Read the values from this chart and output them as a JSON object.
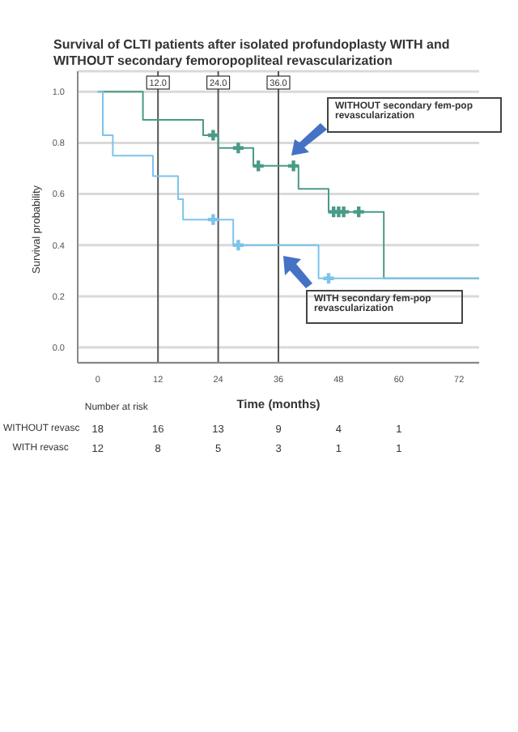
{
  "chart_data": {
    "type": "step",
    "title": "Survival of CLTI patients after isolated profundoplasty WITH and WITHOUT secondary femoropopliteal revascularization",
    "xlabel": "Time (months)",
    "ylabel": "Survival probability",
    "series": [
      {
        "type": "step",
        "color": "#4a9a88",
        "x": [
          0,
          9,
          21,
          24,
          31,
          40,
          46,
          57,
          76
        ],
        "values": [
          1,
          0.89,
          0.83,
          0.78,
          0.71,
          0.62,
          0.53,
          0.27,
          0.27
        ]
      },
      {
        "color": "#7cc3ec",
        "x": [
          0,
          1,
          3,
          11,
          16,
          17,
          27,
          44,
          76
        ],
        "values": [
          1,
          0.83,
          0.75,
          0.67,
          0.58,
          0.5,
          0.4,
          0.27,
          0.27
        ]
      },
      {
        "type": "scatter",
        "marker": "cross",
        "color": "#4a9a88",
        "x": [
          23,
          28,
          32,
          39,
          47,
          48,
          49,
          52
        ],
        "values": [
          0.83,
          0.78,
          0.71,
          0.71,
          0.53,
          0.53,
          0.53,
          0.53
        ]
      },
      {
        "type": "scatter",
        "marker": "cross",
        "color": "#7cc3ec",
        "x": [
          23,
          28,
          46
        ],
        "values": [
          0.5,
          0.4,
          0.27
        ]
      }
    ],
    "xlim": [
      -4,
      76
    ],
    "xticks": [
      0,
      12,
      24,
      36,
      48,
      60,
      72
    ],
    "ylim": [
      -0.06,
      1.08
    ],
    "yticks": [
      {
        "value": 0,
        "label": "0.0"
      },
      {
        "value": 0.2,
        "label": "0.2"
      },
      {
        "value": 0.4,
        "label": "0.4"
      },
      {
        "value": 0.6,
        "label": "0.6"
      },
      {
        "value": 0.8,
        "label": "0.8"
      },
      {
        "value": 1,
        "label": "1.0"
      }
    ],
    "grid": "y",
    "ref_lines": [
      {
        "axis": "x",
        "value": 12,
        "label": "12.0",
        "color": "#555555"
      },
      {
        "axis": "x",
        "value": 24,
        "label": "24.0",
        "color": "#555555"
      },
      {
        "axis": "x",
        "value": 36,
        "label": "36.0",
        "color": "#555555"
      }
    ],
    "annotations": [
      "WITHOUT secondary fem-pop revascularization",
      "WITH secondary fem-pop revascularization",
      "Number at risk",
      "WITHOUT revasc",
      "18",
      "16",
      "13",
      "9",
      "4",
      "1",
      "WITH revasc",
      "12",
      "8",
      "5",
      "3",
      "1",
      "1"
    ]
  }
}
